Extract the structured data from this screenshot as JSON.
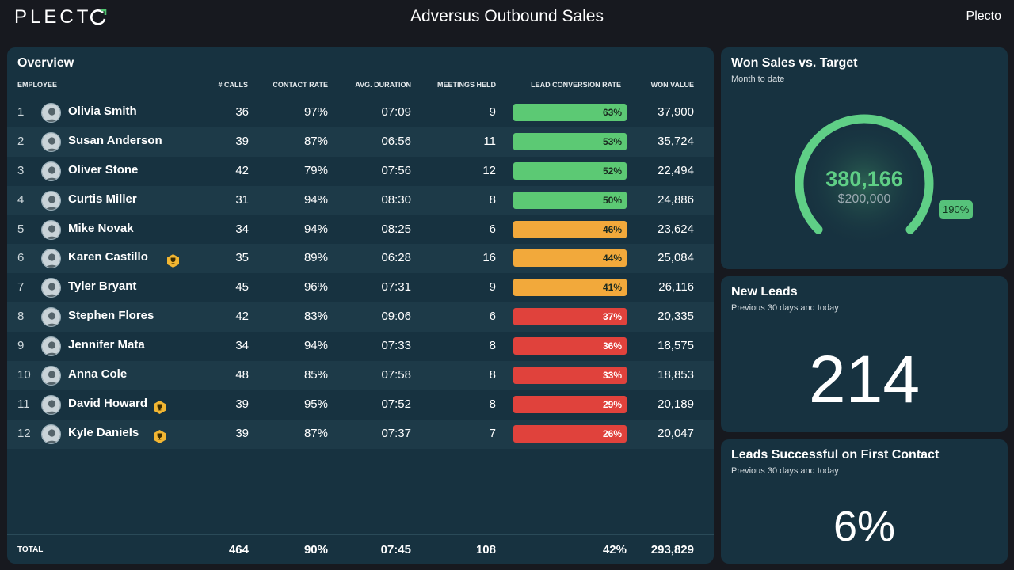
{
  "header": {
    "logo_text": "PLECT",
    "title": "Adversus Outbound Sales",
    "account": "Plecto"
  },
  "colors": {
    "bar_green": "#5cc974",
    "bar_orange": "#f2a93b",
    "bar_red": "#e0423c",
    "gauge_green": "#5fcf86"
  },
  "overview": {
    "title": "Overview",
    "columns": {
      "employee": "EMPLOYEE",
      "calls": "# CALLS",
      "contact_rate": "CONTACT RATE",
      "avg_duration": "AVG. DURATION",
      "meetings": "MEETINGS HELD",
      "conversion": "LEAD CONVERSION RATE",
      "won_value": "WON VALUE"
    },
    "rows": [
      {
        "rank": "1",
        "name": "Olivia Smith",
        "trophy": false,
        "calls": "36",
        "contact": "97%",
        "duration": "07:09",
        "meetings": "9",
        "conversion": "63%",
        "level": "green",
        "won": "37,900"
      },
      {
        "rank": "2",
        "name": "Susan Anderson",
        "trophy": false,
        "calls": "39",
        "contact": "87%",
        "duration": "06:56",
        "meetings": "11",
        "conversion": "53%",
        "level": "green",
        "won": "35,724"
      },
      {
        "rank": "3",
        "name": "Oliver Stone",
        "trophy": false,
        "calls": "42",
        "contact": "79%",
        "duration": "07:56",
        "meetings": "12",
        "conversion": "52%",
        "level": "green",
        "won": "22,494"
      },
      {
        "rank": "4",
        "name": "Curtis Miller",
        "trophy": false,
        "calls": "31",
        "contact": "94%",
        "duration": "08:30",
        "meetings": "8",
        "conversion": "50%",
        "level": "green",
        "won": "24,886"
      },
      {
        "rank": "5",
        "name": "Mike Novak",
        "trophy": false,
        "calls": "34",
        "contact": "94%",
        "duration": "08:25",
        "meetings": "6",
        "conversion": "46%",
        "level": "orange",
        "won": "23,624"
      },
      {
        "rank": "6",
        "name": "Karen Castillo",
        "trophy": true,
        "calls": "35",
        "contact": "89%",
        "duration": "06:28",
        "meetings": "16",
        "conversion": "44%",
        "level": "orange",
        "won": "25,084"
      },
      {
        "rank": "7",
        "name": "Tyler Bryant",
        "trophy": false,
        "calls": "45",
        "contact": "96%",
        "duration": "07:31",
        "meetings": "9",
        "conversion": "41%",
        "level": "orange",
        "won": "26,116"
      },
      {
        "rank": "8",
        "name": "Stephen Flores",
        "trophy": false,
        "calls": "42",
        "contact": "83%",
        "duration": "09:06",
        "meetings": "6",
        "conversion": "37%",
        "level": "red",
        "won": "20,335"
      },
      {
        "rank": "9",
        "name": "Jennifer Mata",
        "trophy": false,
        "calls": "34",
        "contact": "94%",
        "duration": "07:33",
        "meetings": "8",
        "conversion": "36%",
        "level": "red",
        "won": "18,575"
      },
      {
        "rank": "10",
        "name": "Anna Cole",
        "trophy": false,
        "calls": "48",
        "contact": "85%",
        "duration": "07:58",
        "meetings": "8",
        "conversion": "33%",
        "level": "red",
        "won": "18,853"
      },
      {
        "rank": "11",
        "name": "David Howard",
        "trophy": true,
        "calls": "39",
        "contact": "95%",
        "duration": "07:52",
        "meetings": "8",
        "conversion": "29%",
        "level": "red",
        "won": "20,189"
      },
      {
        "rank": "12",
        "name": "Kyle Daniels",
        "trophy": true,
        "calls": "39",
        "contact": "87%",
        "duration": "07:37",
        "meetings": "7",
        "conversion": "26%",
        "level": "red",
        "won": "20,047"
      }
    ],
    "total": {
      "label": "TOTAL",
      "calls": "464",
      "contact": "90%",
      "duration": "07:45",
      "meetings": "108",
      "conversion": "42%",
      "won": "293,829"
    }
  },
  "won_sales": {
    "title": "Won Sales vs. Target",
    "subtitle": "Month to date",
    "value": "380,166",
    "target": "$200,000",
    "percent": "190%",
    "fill_fraction": 1.0
  },
  "new_leads": {
    "title": "New Leads",
    "subtitle": "Previous 30 days and today",
    "value": "214"
  },
  "first_contact": {
    "title": "Leads Successful on First Contact",
    "subtitle": "Previous 30 days and today",
    "value": "6%"
  }
}
